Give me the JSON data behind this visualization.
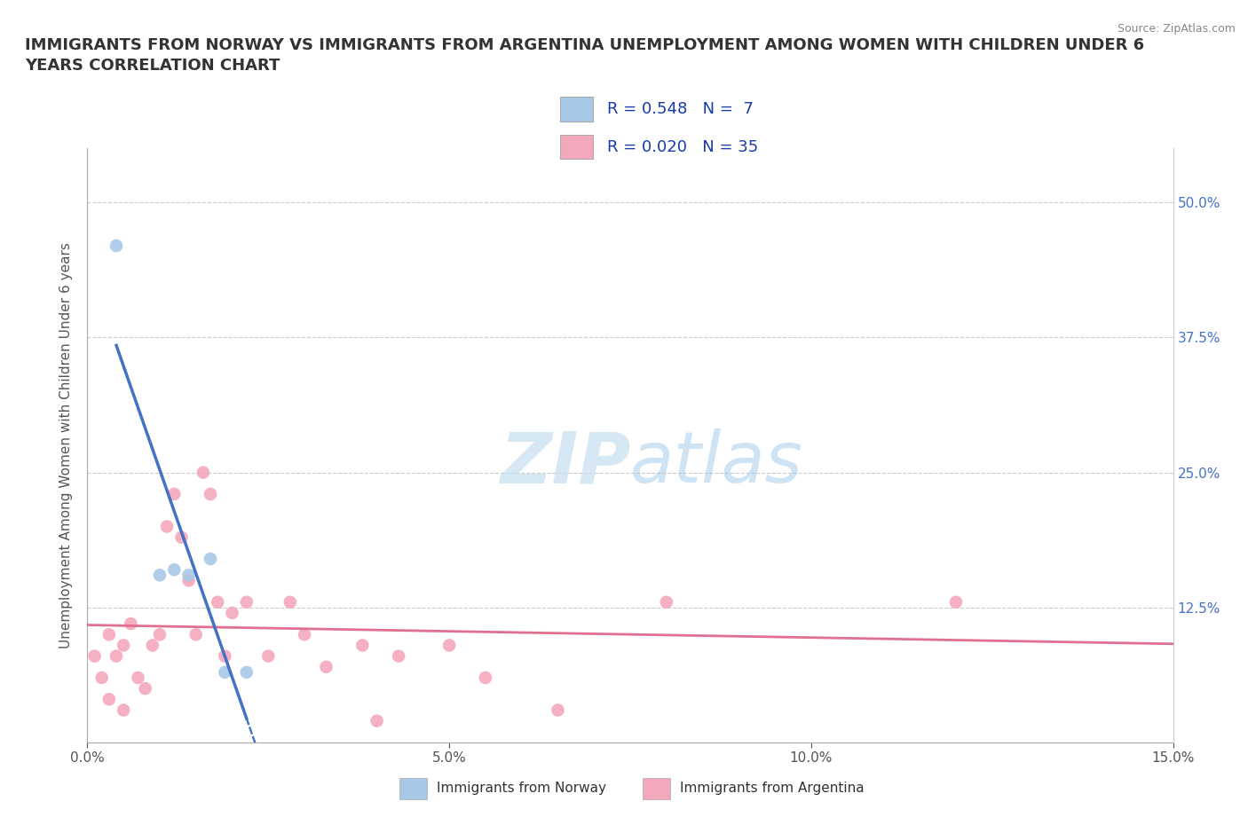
{
  "title": "IMMIGRANTS FROM NORWAY VS IMMIGRANTS FROM ARGENTINA UNEMPLOYMENT AMONG WOMEN WITH CHILDREN UNDER 6\nYEARS CORRELATION CHART",
  "source": "Source: ZipAtlas.com",
  "ylabel": "Unemployment Among Women with Children Under 6 years",
  "xlim": [
    0.0,
    0.15
  ],
  "ylim": [
    0.0,
    0.55
  ],
  "xticks": [
    0.0,
    0.05,
    0.1,
    0.15
  ],
  "xtick_labels": [
    "0.0%",
    "5.0%",
    "10.0%",
    "15.0%"
  ],
  "yticks": [
    0.0,
    0.125,
    0.25,
    0.375,
    0.5
  ],
  "ytick_labels_right": [
    "",
    "12.5%",
    "25.0%",
    "37.5%",
    "50.0%"
  ],
  "norway_color": "#a8c8e8",
  "argentina_color": "#f4a8bc",
  "norway_line_color": "#4472c4",
  "argentina_line_color": "#e07090",
  "norway_R": 0.548,
  "norway_N": 7,
  "argentina_R": 0.02,
  "argentina_N": 35,
  "norway_scatter_x": [
    0.004,
    0.01,
    0.012,
    0.014,
    0.017,
    0.019,
    0.022
  ],
  "norway_scatter_y": [
    0.46,
    0.155,
    0.16,
    0.155,
    0.17,
    0.065,
    0.065
  ],
  "argentina_scatter_x": [
    0.001,
    0.002,
    0.003,
    0.003,
    0.004,
    0.005,
    0.005,
    0.006,
    0.007,
    0.008,
    0.009,
    0.01,
    0.011,
    0.012,
    0.013,
    0.014,
    0.015,
    0.016,
    0.017,
    0.018,
    0.019,
    0.02,
    0.022,
    0.025,
    0.028,
    0.03,
    0.033,
    0.038,
    0.04,
    0.043,
    0.05,
    0.055,
    0.065,
    0.08,
    0.12
  ],
  "argentina_scatter_y": [
    0.08,
    0.06,
    0.1,
    0.04,
    0.08,
    0.03,
    0.09,
    0.11,
    0.06,
    0.05,
    0.09,
    0.1,
    0.2,
    0.23,
    0.19,
    0.15,
    0.1,
    0.25,
    0.23,
    0.13,
    0.08,
    0.12,
    0.13,
    0.08,
    0.13,
    0.1,
    0.07,
    0.09,
    0.02,
    0.08,
    0.09,
    0.06,
    0.03,
    0.13,
    0.13
  ],
  "watermark_zip": "ZIP",
  "watermark_atlas": "atlas",
  "background_color": "#ffffff",
  "grid_color": "#cccccc",
  "legend_norway_label": "R = 0.548   N =  7",
  "legend_argentina_label": "R = 0.020   N = 35",
  "bottom_legend_norway": "Immigrants from Norway",
  "bottom_legend_argentina": "Immigrants from Argentina"
}
